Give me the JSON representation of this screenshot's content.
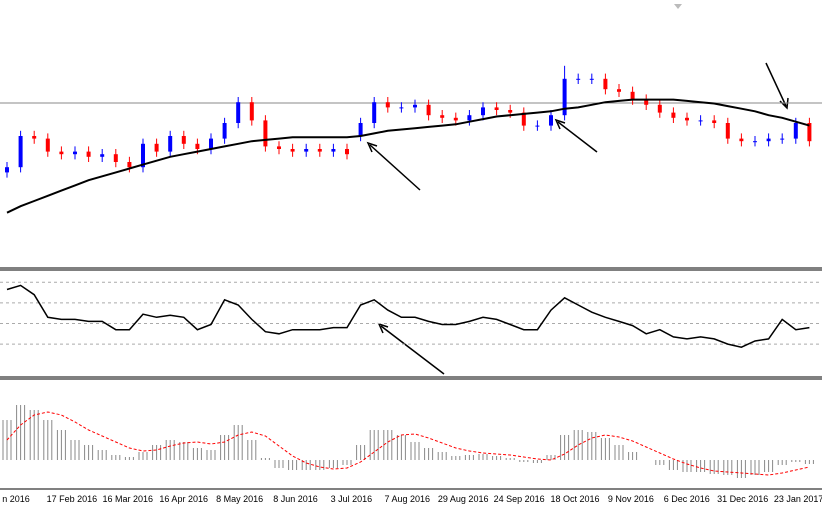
{
  "chart_data": [
    {
      "type": "candlestick",
      "open": [
        36,
        38,
        50,
        49,
        44,
        43,
        44,
        42,
        43,
        40,
        38,
        47,
        44,
        50,
        47,
        45,
        49,
        55,
        63,
        56,
        46,
        45,
        44,
        45,
        44,
        45,
        50,
        55,
        63,
        61,
        61,
        62,
        58,
        57,
        56,
        58,
        61,
        60,
        59,
        54,
        54,
        58,
        72,
        72,
        72,
        68,
        67,
        64,
        62,
        59,
        57,
        56,
        56,
        55,
        49,
        48,
        48,
        49,
        49,
        55
      ],
      "high": [
        40,
        52,
        52,
        51,
        46,
        46,
        46,
        45,
        45,
        42,
        49,
        49,
        52,
        52,
        49,
        51,
        57,
        65,
        65,
        58,
        48,
        47,
        47,
        47,
        47,
        47,
        57,
        65,
        65,
        63,
        64,
        64,
        60,
        59,
        60,
        63,
        63,
        62,
        61,
        56,
        60,
        77,
        74,
        74,
        74,
        70,
        69,
        66,
        64,
        61,
        59,
        58,
        58,
        57,
        51,
        50,
        51,
        51,
        57,
        57
      ],
      "low": [
        34,
        36,
        47,
        42,
        41,
        41,
        40,
        40,
        38,
        36,
        36,
        42,
        42,
        45,
        43,
        43,
        47,
        53,
        54,
        44,
        43,
        42,
        42,
        42,
        42,
        41,
        48,
        53,
        59,
        59,
        59,
        56,
        55,
        54,
        54,
        56,
        58,
        57,
        52,
        52,
        52,
        56,
        70,
        70,
        66,
        65,
        62,
        60,
        57,
        55,
        54,
        54,
        53,
        47,
        46,
        46,
        46,
        47,
        47,
        46
      ],
      "close": [
        38,
        50,
        49,
        44,
        43,
        44,
        42,
        43,
        40,
        38,
        47,
        44,
        50,
        47,
        45,
        49,
        55,
        63,
        56,
        46,
        45,
        44,
        45,
        44,
        45,
        43,
        55,
        63,
        61,
        61,
        62,
        58,
        57,
        56,
        58,
        61,
        60,
        59,
        54,
        54,
        58,
        72,
        72,
        72,
        68,
        67,
        64,
        62,
        59,
        57,
        56,
        56,
        55,
        49,
        48,
        48,
        49,
        49,
        55,
        48
      ],
      "up_color": "#0000ff",
      "down_color": "#ff0000",
      "moving_average": [
        20.5,
        23,
        25,
        27,
        29,
        31,
        33,
        34.5,
        36,
        37.5,
        39,
        40.5,
        42,
        43,
        44,
        45,
        46,
        47,
        48,
        48.5,
        49,
        49.5,
        49.5,
        49.5,
        49.5,
        49.5,
        50,
        51,
        52,
        52.5,
        53,
        53.5,
        54,
        54.5,
        55.5,
        56.5,
        57.5,
        58,
        58.5,
        59,
        59.5,
        60.5,
        61,
        62,
        63,
        63.5,
        64,
        64,
        64,
        64,
        63.5,
        63,
        62.5,
        61.5,
        60.5,
        59.5,
        58,
        57,
        55.5,
        54
      ],
      "ma_color": "#000000",
      "hline": 62.7,
      "ylim": [
        0,
        100
      ]
    },
    {
      "type": "line",
      "values": [
        83,
        87,
        78,
        56,
        54,
        54,
        52,
        52,
        44,
        44,
        59,
        56,
        58,
        56,
        44,
        49,
        73,
        68,
        54,
        42,
        40,
        44,
        44,
        44,
        46,
        46,
        68,
        73,
        63,
        56,
        56,
        52,
        49,
        49,
        52,
        56,
        54,
        49,
        44,
        44,
        63,
        75,
        68,
        61,
        56,
        52,
        48,
        40,
        44,
        37,
        35,
        37,
        35,
        30,
        27,
        33,
        35,
        54,
        44,
        46
      ],
      "color": "#000000",
      "levels": [
        90,
        70,
        50,
        30
      ],
      "ylim": [
        0,
        100
      ]
    },
    {
      "type": "bar",
      "values": [
        40,
        55,
        50,
        40,
        30,
        20,
        15,
        10,
        5,
        3,
        8,
        15,
        20,
        18,
        12,
        10,
        25,
        35,
        20,
        2,
        -8,
        -10,
        -10,
        -10,
        -8,
        -5,
        15,
        30,
        30,
        25,
        18,
        12,
        8,
        4,
        5,
        6,
        4,
        2,
        -2,
        -3,
        5,
        25,
        30,
        28,
        22,
        15,
        8,
        0,
        -5,
        -10,
        -12,
        -12,
        -14,
        -15,
        -18,
        -15,
        -12,
        -5,
        -2,
        -4
      ],
      "signal": [
        20,
        35,
        45,
        48,
        45,
        38,
        30,
        24,
        18,
        12,
        9,
        10,
        14,
        17,
        18,
        16,
        18,
        25,
        28,
        24,
        14,
        4,
        -3,
        -7,
        -9,
        -8,
        -2,
        8,
        18,
        25,
        26,
        22,
        17,
        12,
        9,
        7,
        6,
        5,
        3,
        1,
        0,
        6,
        15,
        22,
        25,
        23,
        19,
        13,
        7,
        1,
        -4,
        -8,
        -11,
        -12,
        -13,
        -14,
        -15,
        -13,
        -10,
        -7
      ],
      "color": "#888888",
      "signal_color": "#ff0000",
      "ylim": [
        -28,
        78
      ],
      "x_tick_labels": [
        "n 2016",
        "17 Feb 2016",
        "16 Mar 2016",
        "16 Apr 2016",
        "8 May 2016",
        "8 Jun 2016",
        "3 Jul 2016",
        "7 Aug 2016",
        "29 Aug 2016",
        "24 Sep 2016",
        "18 Oct 2016",
        "9 Nov 2016",
        "6 Dec 2016",
        "31 Dec 2016",
        "23 Jan 2017"
      ]
    }
  ]
}
